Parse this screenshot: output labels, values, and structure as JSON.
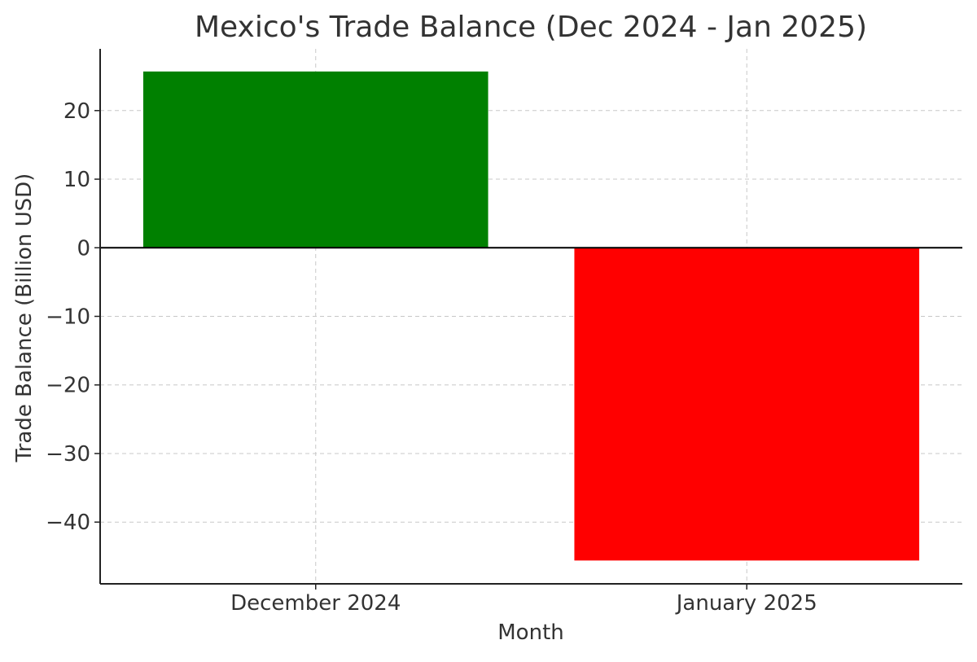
{
  "chart_data": {
    "type": "bar",
    "title": "Mexico's Trade Balance (Dec 2024 - Jan 2025)",
    "xlabel": "Month",
    "ylabel": "Trade Balance (Billion USD)",
    "categories": [
      "December 2024",
      "January 2025"
    ],
    "values": [
      25.7,
      -45.6
    ],
    "bar_colors": [
      "#008000",
      "#ff0000"
    ],
    "ylim": [
      -49,
      29
    ],
    "yticks": [
      20,
      10,
      0,
      -10,
      -20,
      -30,
      -40
    ],
    "ytick_labels": [
      "20",
      "10",
      "0",
      "−10",
      "−20",
      "−30",
      "−40"
    ],
    "grid": true,
    "zero_line": true,
    "legend": "none"
  }
}
